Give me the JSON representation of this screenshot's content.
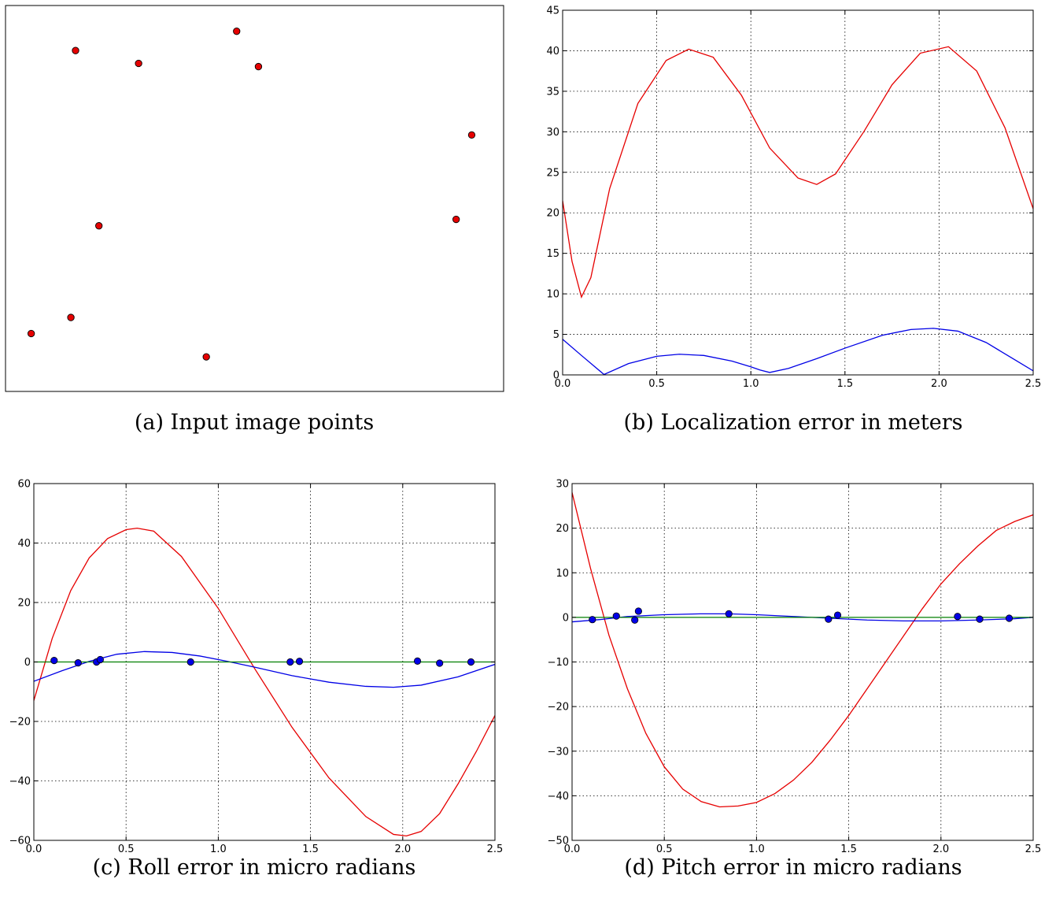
{
  "chart_data": [
    {
      "id": "a",
      "type": "scatter",
      "caption": "(a) Input image points",
      "axes_visible": false,
      "grid": false,
      "xlim": [
        0,
        640
      ],
      "ylim": [
        0,
        480
      ],
      "colors": {
        "marker_fill": "#e60000",
        "marker_edge": "#000000"
      },
      "points": [
        {
          "x": 90,
          "y": 424
        },
        {
          "x": 171,
          "y": 408
        },
        {
          "x": 297,
          "y": 448
        },
        {
          "x": 325,
          "y": 404
        },
        {
          "x": 599,
          "y": 319
        },
        {
          "x": 120,
          "y": 206
        },
        {
          "x": 579,
          "y": 214
        },
        {
          "x": 84,
          "y": 92
        },
        {
          "x": 33,
          "y": 72
        },
        {
          "x": 258,
          "y": 43
        }
      ]
    },
    {
      "id": "b",
      "type": "line",
      "caption": "(b) Localization error in meters",
      "grid": true,
      "xlim": [
        0.0,
        2.5
      ],
      "ylim": [
        0,
        45
      ],
      "xticks": [
        "0.0",
        "0.5",
        "1.0",
        "1.5",
        "2.0",
        "2.5"
      ],
      "yticks": [
        "0",
        "5",
        "10",
        "15",
        "20",
        "25",
        "30",
        "35",
        "40",
        "45"
      ],
      "series": [
        {
          "color": "#e60000",
          "x": [
            0.0,
            0.05,
            0.1,
            0.15,
            0.25,
            0.4,
            0.55,
            0.67,
            0.8,
            0.95,
            1.1,
            1.25,
            1.35,
            1.45,
            1.6,
            1.75,
            1.9,
            2.05,
            2.2,
            2.35,
            2.5
          ],
          "y": [
            21.5,
            14,
            9.6,
            12,
            23,
            33.5,
            38.8,
            40.2,
            39.2,
            34.5,
            28,
            24.3,
            23.5,
            24.8,
            30,
            35.8,
            39.7,
            40.5,
            37.5,
            30.5,
            20.5
          ]
        },
        {
          "color": "#0000e6",
          "x": [
            0.0,
            0.1,
            0.22,
            0.35,
            0.5,
            0.62,
            0.75,
            0.9,
            1.0,
            1.05,
            1.1,
            1.2,
            1.35,
            1.5,
            1.7,
            1.85,
            1.97,
            2.1,
            2.25,
            2.4,
            2.5
          ],
          "y": [
            4.4,
            2.4,
            0.05,
            1.4,
            2.3,
            2.55,
            2.4,
            1.7,
            1.0,
            0.6,
            0.3,
            0.8,
            2.0,
            3.3,
            4.9,
            5.6,
            5.75,
            5.4,
            4.0,
            1.9,
            0.5
          ]
        }
      ]
    },
    {
      "id": "c",
      "type": "line",
      "caption": "(c) Roll error in micro radians",
      "grid": true,
      "xlim": [
        0.0,
        2.5
      ],
      "ylim": [
        -60,
        60
      ],
      "xticks": [
        "0.0",
        "0.5",
        "1.0",
        "1.5",
        "2.0",
        "2.5"
      ],
      "yticks": [
        "−60",
        "−40",
        "−20",
        "0",
        "20",
        "40",
        "60"
      ],
      "series": [
        {
          "color": "#e60000",
          "x": [
            0.0,
            0.1,
            0.2,
            0.3,
            0.4,
            0.5,
            0.56,
            0.65,
            0.8,
            1.0,
            1.2,
            1.4,
            1.6,
            1.8,
            1.95,
            2.02,
            2.1,
            2.2,
            2.3,
            2.4,
            2.5
          ],
          "y": [
            -13,
            8,
            24,
            35,
            41.5,
            44.5,
            45,
            44,
            35.5,
            18,
            -2.5,
            -22,
            -39,
            -52,
            -58,
            -58.5,
            -57,
            -51,
            -41,
            -30,
            -18
          ]
        },
        {
          "color": "#0000e6",
          "x": [
            0.0,
            0.15,
            0.3,
            0.45,
            0.6,
            0.75,
            0.9,
            1.05,
            1.2,
            1.4,
            1.6,
            1.8,
            1.95,
            2.1,
            2.3,
            2.5
          ],
          "y": [
            -6.5,
            -3,
            0.2,
            2.6,
            3.5,
            3.2,
            2,
            0.2,
            -1.8,
            -4.6,
            -6.8,
            -8.2,
            -8.5,
            -7.8,
            -5,
            -0.8
          ]
        },
        {
          "color": "#007f00",
          "x": [
            0.0,
            2.5
          ],
          "y": [
            0,
            0
          ]
        }
      ],
      "dots": {
        "color": "#0000e6",
        "x": [
          0.11,
          0.24,
          0.34,
          0.36,
          0.85,
          1.39,
          1.44,
          2.08,
          2.2,
          2.37
        ],
        "y": [
          0.5,
          -0.3,
          0,
          0.8,
          0,
          0,
          0.2,
          0.3,
          -0.4,
          0
        ]
      }
    },
    {
      "id": "d",
      "type": "line",
      "caption": "(d) Pitch error in micro radians",
      "grid": true,
      "xlim": [
        0.0,
        2.5
      ],
      "ylim": [
        -50,
        30
      ],
      "xticks": [
        "0.0",
        "0.5",
        "1.0",
        "1.5",
        "2.0",
        "2.5"
      ],
      "yticks": [
        "−50",
        "−40",
        "−30",
        "−20",
        "−10",
        "0",
        "10",
        "20",
        "30"
      ],
      "series": [
        {
          "color": "#e60000",
          "x": [
            0.0,
            0.1,
            0.2,
            0.3,
            0.4,
            0.5,
            0.6,
            0.7,
            0.8,
            0.9,
            1.0,
            1.1,
            1.2,
            1.3,
            1.4,
            1.5,
            1.6,
            1.7,
            1.8,
            1.9,
            2.0,
            2.1,
            2.2,
            2.3,
            2.4,
            2.5
          ],
          "y": [
            28,
            11,
            -4,
            -16,
            -26,
            -33.5,
            -38.5,
            -41.3,
            -42.5,
            -42.3,
            -41.5,
            -39.5,
            -36.5,
            -32.5,
            -27.5,
            -22,
            -16,
            -10,
            -4,
            2,
            7.5,
            12,
            16,
            19.5,
            21.5,
            23
          ]
        },
        {
          "color": "#0000e6",
          "x": [
            0.0,
            0.15,
            0.3,
            0.5,
            0.7,
            0.85,
            1.0,
            1.2,
            1.4,
            1.6,
            1.8,
            2.0,
            2.2,
            2.4,
            2.5
          ],
          "y": [
            -1,
            -0.5,
            0.2,
            0.6,
            0.8,
            0.8,
            0.6,
            0.2,
            -0.2,
            -0.6,
            -0.8,
            -0.8,
            -0.6,
            -0.3,
            0
          ]
        },
        {
          "color": "#007f00",
          "x": [
            0.0,
            2.5
          ],
          "y": [
            0,
            0
          ]
        }
      ],
      "dots": {
        "color": "#0000e6",
        "x": [
          0.11,
          0.24,
          0.34,
          0.36,
          0.85,
          1.39,
          1.44,
          2.09,
          2.21,
          2.37
        ],
        "y": [
          -0.5,
          0.3,
          -0.6,
          1.4,
          0.8,
          -0.4,
          0.5,
          0.2,
          -0.4,
          -0.2
        ]
      }
    }
  ]
}
